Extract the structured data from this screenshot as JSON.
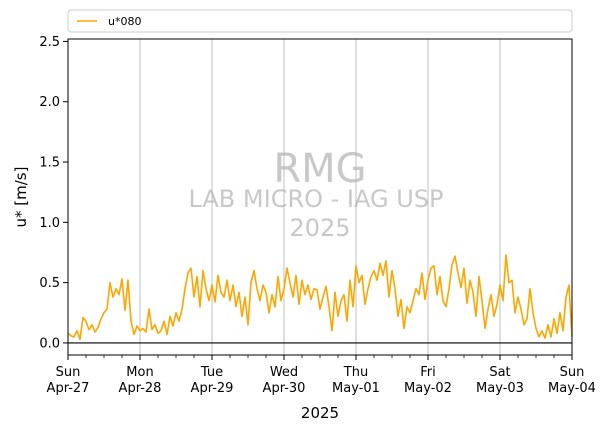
{
  "chart_data": {
    "type": "line",
    "xlabel": "2025",
    "ylabel": "u* [m/s]",
    "ylim": [
      -0.1,
      2.52
    ],
    "xlim_days": [
      "2025-04-27",
      "2025-05-04"
    ],
    "yticks": [
      "0.0",
      "0.5",
      "1.0",
      "1.5",
      "2.0",
      "2.5"
    ],
    "ytick_values": [
      0.0,
      0.5,
      1.0,
      1.5,
      2.0,
      2.5
    ],
    "xticks": [
      {
        "day": "Sun",
        "date": "Apr-27"
      },
      {
        "day": "Mon",
        "date": "Apr-28"
      },
      {
        "day": "Tue",
        "date": "Apr-29"
      },
      {
        "day": "Wed",
        "date": "Apr-30"
      },
      {
        "day": "Thu",
        "date": "May-01"
      },
      {
        "day": "Fri",
        "date": "May-02"
      },
      {
        "day": "Sat",
        "date": "May-03"
      },
      {
        "day": "Sun",
        "date": "May-04"
      }
    ],
    "grid": "vertical",
    "legend": {
      "placement": "top-left above axes",
      "entries": [
        "u*080"
      ]
    },
    "colors": {
      "series": "#ffa500",
      "grid": "#b0b0b0",
      "zero_line": "#000000"
    },
    "watermark": [
      "RMG",
      "LAB MICRO - IAG USP",
      "2025"
    ],
    "series": [
      {
        "name": "u*080",
        "x": [
          "2025-04-27 00:00",
          "2025-04-27 01:00",
          "2025-04-27 02:00",
          "2025-04-27 03:00",
          "2025-04-27 04:00",
          "2025-04-27 05:00",
          "2025-04-27 06:00",
          "2025-04-27 07:00",
          "2025-04-27 08:00",
          "2025-04-27 09:00",
          "2025-04-27 10:00",
          "2025-04-27 11:00",
          "2025-04-27 12:00",
          "2025-04-27 13:00",
          "2025-04-27 14:00",
          "2025-04-27 15:00",
          "2025-04-27 16:00",
          "2025-04-27 17:00",
          "2025-04-27 18:00",
          "2025-04-27 19:00",
          "2025-04-27 20:00",
          "2025-04-27 21:00",
          "2025-04-27 22:00",
          "2025-04-27 23:00",
          "2025-04-28 00:00",
          "2025-04-28 01:00",
          "2025-04-28 02:00",
          "2025-04-28 03:00",
          "2025-04-28 04:00",
          "2025-04-28 05:00",
          "2025-04-28 06:00",
          "2025-04-28 07:00",
          "2025-04-28 08:00",
          "2025-04-28 09:00",
          "2025-04-28 10:00",
          "2025-04-28 11:00",
          "2025-04-28 12:00",
          "2025-04-28 13:00",
          "2025-04-28 14:00",
          "2025-04-28 15:00",
          "2025-04-28 16:00",
          "2025-04-28 17:00",
          "2025-04-28 18:00",
          "2025-04-28 19:00",
          "2025-04-28 20:00",
          "2025-04-28 21:00",
          "2025-04-28 22:00",
          "2025-04-28 23:00",
          "2025-04-29 00:00",
          "2025-04-29 01:00",
          "2025-04-29 02:00",
          "2025-04-29 03:00",
          "2025-04-29 04:00",
          "2025-04-29 05:00",
          "2025-04-29 06:00",
          "2025-04-29 07:00",
          "2025-04-29 08:00",
          "2025-04-29 09:00",
          "2025-04-29 10:00",
          "2025-04-29 11:00",
          "2025-04-29 12:00",
          "2025-04-29 13:00",
          "2025-04-29 14:00",
          "2025-04-29 15:00",
          "2025-04-29 16:00",
          "2025-04-29 17:00",
          "2025-04-29 18:00",
          "2025-04-29 19:00",
          "2025-04-29 20:00",
          "2025-04-29 21:00",
          "2025-04-29 22:00",
          "2025-04-29 23:00",
          "2025-04-30 00:00",
          "2025-04-30 01:00",
          "2025-04-30 02:00",
          "2025-04-30 03:00",
          "2025-04-30 04:00",
          "2025-04-30 05:00",
          "2025-04-30 06:00",
          "2025-04-30 07:00",
          "2025-04-30 08:00",
          "2025-04-30 09:00",
          "2025-04-30 10:00",
          "2025-04-30 11:00",
          "2025-04-30 12:00",
          "2025-04-30 13:00",
          "2025-04-30 14:00",
          "2025-04-30 15:00",
          "2025-04-30 16:00",
          "2025-04-30 17:00",
          "2025-04-30 18:00",
          "2025-04-30 19:00",
          "2025-04-30 20:00",
          "2025-04-30 21:00",
          "2025-04-30 22:00",
          "2025-04-30 23:00",
          "2025-05-01 00:00",
          "2025-05-01 01:00",
          "2025-05-01 02:00",
          "2025-05-01 03:00",
          "2025-05-01 04:00",
          "2025-05-01 05:00",
          "2025-05-01 06:00",
          "2025-05-01 07:00",
          "2025-05-01 08:00",
          "2025-05-01 09:00",
          "2025-05-01 10:00",
          "2025-05-01 11:00",
          "2025-05-01 12:00",
          "2025-05-01 13:00",
          "2025-05-01 14:00",
          "2025-05-01 15:00",
          "2025-05-01 16:00",
          "2025-05-01 17:00",
          "2025-05-01 18:00",
          "2025-05-01 19:00",
          "2025-05-01 20:00",
          "2025-05-01 21:00",
          "2025-05-01 22:00",
          "2025-05-01 23:00",
          "2025-05-02 00:00",
          "2025-05-02 01:00",
          "2025-05-02 02:00",
          "2025-05-02 03:00",
          "2025-05-02 04:00",
          "2025-05-02 05:00",
          "2025-05-02 06:00",
          "2025-05-02 07:00",
          "2025-05-02 08:00",
          "2025-05-02 09:00",
          "2025-05-02 10:00",
          "2025-05-02 11:00",
          "2025-05-02 12:00",
          "2025-05-02 13:00",
          "2025-05-02 14:00",
          "2025-05-02 15:00",
          "2025-05-02 16:00",
          "2025-05-02 17:00",
          "2025-05-02 18:00",
          "2025-05-02 19:00",
          "2025-05-02 20:00",
          "2025-05-02 21:00",
          "2025-05-02 22:00",
          "2025-05-02 23:00",
          "2025-05-03 00:00",
          "2025-05-03 01:00",
          "2025-05-03 02:00",
          "2025-05-03 03:00",
          "2025-05-03 04:00",
          "2025-05-03 05:00",
          "2025-05-03 06:00",
          "2025-05-03 07:00",
          "2025-05-03 08:00",
          "2025-05-03 09:00",
          "2025-05-03 10:00",
          "2025-05-03 11:00",
          "2025-05-03 12:00",
          "2025-05-03 13:00",
          "2025-05-03 14:00",
          "2025-05-03 15:00",
          "2025-05-03 16:00",
          "2025-05-03 17:00",
          "2025-05-03 18:00",
          "2025-05-03 19:00",
          "2025-05-03 20:00",
          "2025-05-03 21:00",
          "2025-05-03 22:00",
          "2025-05-03 23:00",
          "2025-05-04 00:00"
        ],
        "values": [
          0.08,
          0.06,
          0.05,
          0.1,
          0.03,
          0.21,
          0.18,
          0.11,
          0.15,
          0.09,
          0.13,
          0.2,
          0.25,
          0.28,
          0.5,
          0.38,
          0.45,
          0.4,
          0.53,
          0.27,
          0.52,
          0.18,
          0.07,
          0.14,
          0.1,
          0.12,
          0.09,
          0.28,
          0.11,
          0.15,
          0.08,
          0.1,
          0.18,
          0.07,
          0.22,
          0.14,
          0.25,
          0.18,
          0.28,
          0.45,
          0.58,
          0.62,
          0.38,
          0.55,
          0.3,
          0.6,
          0.45,
          0.35,
          0.48,
          0.34,
          0.56,
          0.42,
          0.38,
          0.52,
          0.35,
          0.48,
          0.3,
          0.42,
          0.22,
          0.38,
          0.15,
          0.5,
          0.6,
          0.45,
          0.35,
          0.48,
          0.42,
          0.25,
          0.4,
          0.3,
          0.55,
          0.35,
          0.45,
          0.62,
          0.5,
          0.38,
          0.56,
          0.32,
          0.52,
          0.4,
          0.48,
          0.36,
          0.45,
          0.44,
          0.28,
          0.38,
          0.47,
          0.3,
          0.1,
          0.42,
          0.22,
          0.35,
          0.4,
          0.18,
          0.52,
          0.3,
          0.64,
          0.5,
          0.56,
          0.32,
          0.45,
          0.55,
          0.6,
          0.52,
          0.66,
          0.56,
          0.68,
          0.38,
          0.6,
          0.45,
          0.22,
          0.36,
          0.12,
          0.3,
          0.25,
          0.35,
          0.45,
          0.4,
          0.58,
          0.36,
          0.52,
          0.62,
          0.64,
          0.4,
          0.55,
          0.35,
          0.3,
          0.45,
          0.65,
          0.72,
          0.58,
          0.46,
          0.62,
          0.33,
          0.52,
          0.42,
          0.22,
          0.55,
          0.35,
          0.12,
          0.28,
          0.4,
          0.22,
          0.32,
          0.48,
          0.35,
          0.73,
          0.5,
          0.52,
          0.25,
          0.38,
          0.28,
          0.15,
          0.2,
          0.45,
          0.25,
          0.12,
          0.05,
          0.1,
          0.04,
          0.15,
          0.05,
          0.2,
          0.08,
          0.25,
          0.1,
          0.38,
          0.48,
          0.05
        ]
      }
    ]
  }
}
